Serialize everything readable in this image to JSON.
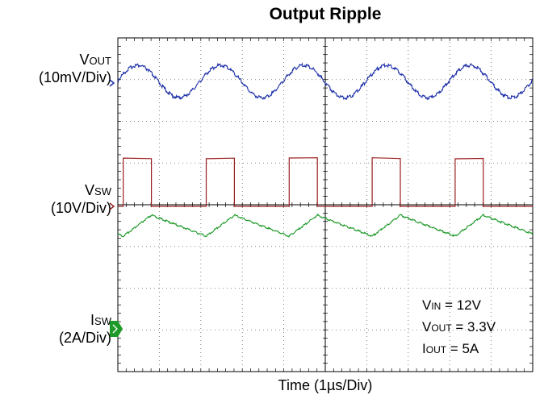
{
  "title": "Output Ripple",
  "xlabel": "Time (1µs/Div)",
  "channels": {
    "vout": {
      "sym": "V",
      "sub": "OUT",
      "scale": "(10mV/Div)",
      "color": "#1c2fa8"
    },
    "vsw": {
      "sym": "V",
      "sub": "SW",
      "scale": "(10V/Div)",
      "color": "#9a1f1f"
    },
    "isw": {
      "sym": "I",
      "sub": "SW",
      "scale": "(2A/Div)",
      "color": "#1f9a2a"
    }
  },
  "conditions": [
    {
      "sym": "V",
      "sub": "IN",
      "value": " = 12V"
    },
    {
      "sym": "V",
      "sub": "OUT",
      "value": " = 3.3V"
    },
    {
      "sym": "I",
      "sub": "OUT",
      "value": " = 5A"
    }
  ],
  "chart_data": {
    "type": "line",
    "title": "Output Ripple",
    "xlabel": "Time (1µs/Div)",
    "xlim": [
      0,
      10
    ],
    "ylim": [
      -4,
      4
    ],
    "grid": true,
    "switching_period_us": 2.0,
    "duty_cycle": 0.34,
    "series": [
      {
        "name": "VOUT",
        "unit": "mV",
        "scale_per_div": 10,
        "peak_to_peak": 14
      },
      {
        "name": "VSW",
        "unit": "V",
        "scale_per_div": 10,
        "low": 0,
        "high": 12
      },
      {
        "name": "ISW",
        "unit": "A",
        "scale_per_div": 2,
        "min": 4.3,
        "max": 5.6
      }
    ]
  }
}
